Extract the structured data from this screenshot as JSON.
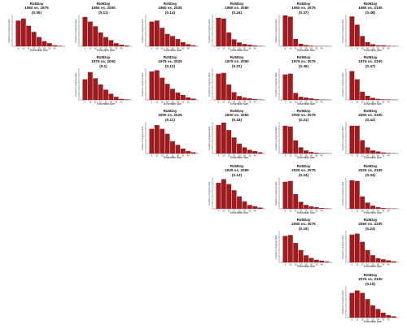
{
  "colors": {
    "bar": "#9e1b1f"
  },
  "chart_data": {
    "type": "bar",
    "xlabel": "Ensemble size",
    "ylabel": "Fraction of grid points",
    "xticks": [
      "5",
      "10",
      "15",
      "20",
      "25",
      "30",
      "35",
      "40"
    ],
    "bar_centers": [
      5,
      10,
      15,
      20,
      25,
      30,
      35,
      40,
      45
    ],
    "panels": [
      {
        "title": [
          "Rx5Day",
          "1950 vs. 1975",
          "(0.09)"
        ],
        "col": 0,
        "row": 0,
        "values": [
          0.25,
          0.27,
          0.2,
          0.14,
          0.09,
          0.05,
          0.03,
          0.01,
          0.005
        ],
        "ylim": [
          0,
          0.3
        ]
      },
      {
        "title": [
          "Rx5Day",
          "1950 vs. 2000",
          "(0.11)"
        ],
        "col": 1,
        "row": 0,
        "values": [
          0.19,
          0.16,
          0.13,
          0.09,
          0.06,
          0.04,
          0.02,
          0.01,
          0.005
        ],
        "ylim": [
          0,
          0.2
        ]
      },
      {
        "title": [
          "Rx5Day",
          "1950 vs. 2025",
          "(0.14)"
        ],
        "col": 2,
        "row": 0,
        "values": [
          0.24,
          0.25,
          0.18,
          0.12,
          0.1,
          0.07,
          0.04,
          0.02,
          0.01
        ],
        "ylim": [
          0,
          0.3
        ]
      },
      {
        "title": [
          "Rx5Day",
          "1950 vs. 2050",
          "(0.24)"
        ],
        "col": 3,
        "row": 0,
        "values": [
          0.37,
          0.36,
          0.18,
          0.09,
          0.05,
          0.03,
          0.02,
          0.01,
          0.005
        ],
        "ylim": [
          0,
          0.4
        ]
      },
      {
        "title": [
          "Rx5Day",
          "1950 vs. 2075",
          "(0.37)"
        ],
        "col": 4,
        "row": 0,
        "values": [
          0.5,
          0.48,
          0.12,
          0.04,
          0.02,
          0.01,
          0.005,
          0.005,
          0.002
        ],
        "ylim": [
          0,
          0.5
        ]
      },
      {
        "title": [
          "Rx5Day",
          "1950 vs. 2100",
          "(0.48)"
        ],
        "col": 5,
        "row": 0,
        "values": [
          0.29,
          0.21,
          0.1,
          0.04,
          0.02,
          0.01,
          0.01,
          0.005,
          0.002
        ],
        "ylim": [
          0,
          0.3
        ]
      },
      {
        "title": [
          "Rx5Day",
          "1975 vs. 2000",
          "(0.1)"
        ],
        "col": 1,
        "row": 1,
        "values": [
          0.2,
          0.27,
          0.21,
          0.15,
          0.1,
          0.06,
          0.03,
          0.01,
          0.005
        ],
        "ylim": [
          0,
          0.3
        ]
      },
      {
        "title": [
          "Rx5Day",
          "1975 vs. 2025",
          "(0.12)"
        ],
        "col": 2,
        "row": 1,
        "values": [
          0.23,
          0.24,
          0.18,
          0.13,
          0.09,
          0.06,
          0.04,
          0.02,
          0.01
        ],
        "ylim": [
          0,
          0.25
        ]
      },
      {
        "title": [
          "Rx5Day",
          "1975 vs. 2050",
          "(0.22)"
        ],
        "col": 3,
        "row": 1,
        "values": [
          0.34,
          0.35,
          0.2,
          0.1,
          0.05,
          0.03,
          0.02,
          0.01,
          0.005
        ],
        "ylim": [
          0,
          0.4
        ]
      },
      {
        "title": [
          "Rx5Day",
          "1975 vs. 2075",
          "(0.36)"
        ],
        "col": 4,
        "row": 1,
        "values": [
          0.33,
          0.34,
          0.09,
          0.04,
          0.03,
          0.02,
          0.01,
          0.005,
          0.002
        ],
        "ylim": [
          0,
          0.4
        ]
      },
      {
        "title": [
          "Rx5Day",
          "1975 vs. 2100",
          "(0.47)"
        ],
        "col": 5,
        "row": 1,
        "values": [
          0.28,
          0.2,
          0.08,
          0.04,
          0.02,
          0.01,
          0.005,
          0.005,
          0.002
        ],
        "ylim": [
          0,
          0.3
        ]
      },
      {
        "title": [
          "Rx5Day",
          "2000 vs. 2025",
          "(0.11)"
        ],
        "col": 2,
        "row": 2,
        "values": [
          0.2,
          0.23,
          0.2,
          0.16,
          0.1,
          0.07,
          0.04,
          0.02,
          0.01
        ],
        "ylim": [
          0,
          0.25
        ]
      },
      {
        "title": [
          "Rx5Day",
          "2000 vs. 2050",
          "(0.18)"
        ],
        "col": 3,
        "row": 2,
        "values": [
          0.23,
          0.25,
          0.19,
          0.13,
          0.08,
          0.05,
          0.03,
          0.02,
          0.01
        ],
        "ylim": [
          0,
          0.25
        ]
      },
      {
        "title": [
          "Rx5Day",
          "2000 vs. 2075",
          "(0.31)"
        ],
        "col": 4,
        "row": 2,
        "values": [
          0.36,
          0.35,
          0.17,
          0.08,
          0.04,
          0.02,
          0.01,
          0.005,
          0.002
        ],
        "ylim": [
          0,
          0.4
        ]
      },
      {
        "title": [
          "Rx5Day",
          "2000 vs. 2100",
          "(0.42)"
        ],
        "col": 5,
        "row": 2,
        "values": [
          0.27,
          0.27,
          0.13,
          0.06,
          0.03,
          0.02,
          0.01,
          0.005,
          0.002
        ],
        "ylim": [
          0,
          0.3
        ]
      },
      {
        "title": [
          "Rx5Day",
          "2025 vs. 2050",
          "(0.13)"
        ],
        "col": 3,
        "row": 3,
        "values": [
          0.21,
          0.24,
          0.2,
          0.15,
          0.1,
          0.06,
          0.03,
          0.02,
          0.01
        ],
        "ylim": [
          0,
          0.25
        ]
      },
      {
        "title": [
          "Rx5Day",
          "2025 vs. 2075",
          "(0.24)"
        ],
        "col": 4,
        "row": 3,
        "values": [
          0.35,
          0.36,
          0.19,
          0.09,
          0.05,
          0.03,
          0.02,
          0.01,
          0.005
        ],
        "ylim": [
          0,
          0.4
        ]
      },
      {
        "title": [
          "Rx5Day",
          "2025 vs. 2100",
          "(0.34)"
        ],
        "col": 5,
        "row": 3,
        "values": [
          0.37,
          0.36,
          0.16,
          0.08,
          0.04,
          0.02,
          0.01,
          0.005,
          0.002
        ],
        "ylim": [
          0,
          0.4
        ]
      },
      {
        "title": [
          "Rx5Day",
          "2050 vs. 2075",
          "(0.16)"
        ],
        "col": 4,
        "row": 4,
        "values": [
          0.3,
          0.31,
          0.22,
          0.14,
          0.08,
          0.05,
          0.03,
          0.02,
          0.01
        ],
        "ylim": [
          0,
          0.35
        ]
      },
      {
        "title": [
          "Rx5Day",
          "2050 vs. 2100",
          "(0.24)"
        ],
        "col": 5,
        "row": 4,
        "values": [
          0.27,
          0.28,
          0.2,
          0.12,
          0.07,
          0.04,
          0.03,
          0.02,
          0.01
        ],
        "ylim": [
          0,
          0.3
        ]
      },
      {
        "title": [
          "Rx5Day",
          "2075 vs. 2100",
          "(0.15)"
        ],
        "col": 5,
        "row": 5,
        "values": [
          0.2,
          0.22,
          0.2,
          0.15,
          0.1,
          0.07,
          0.04,
          0.02,
          0.01
        ],
        "ylim": [
          0,
          0.25
        ]
      }
    ]
  }
}
